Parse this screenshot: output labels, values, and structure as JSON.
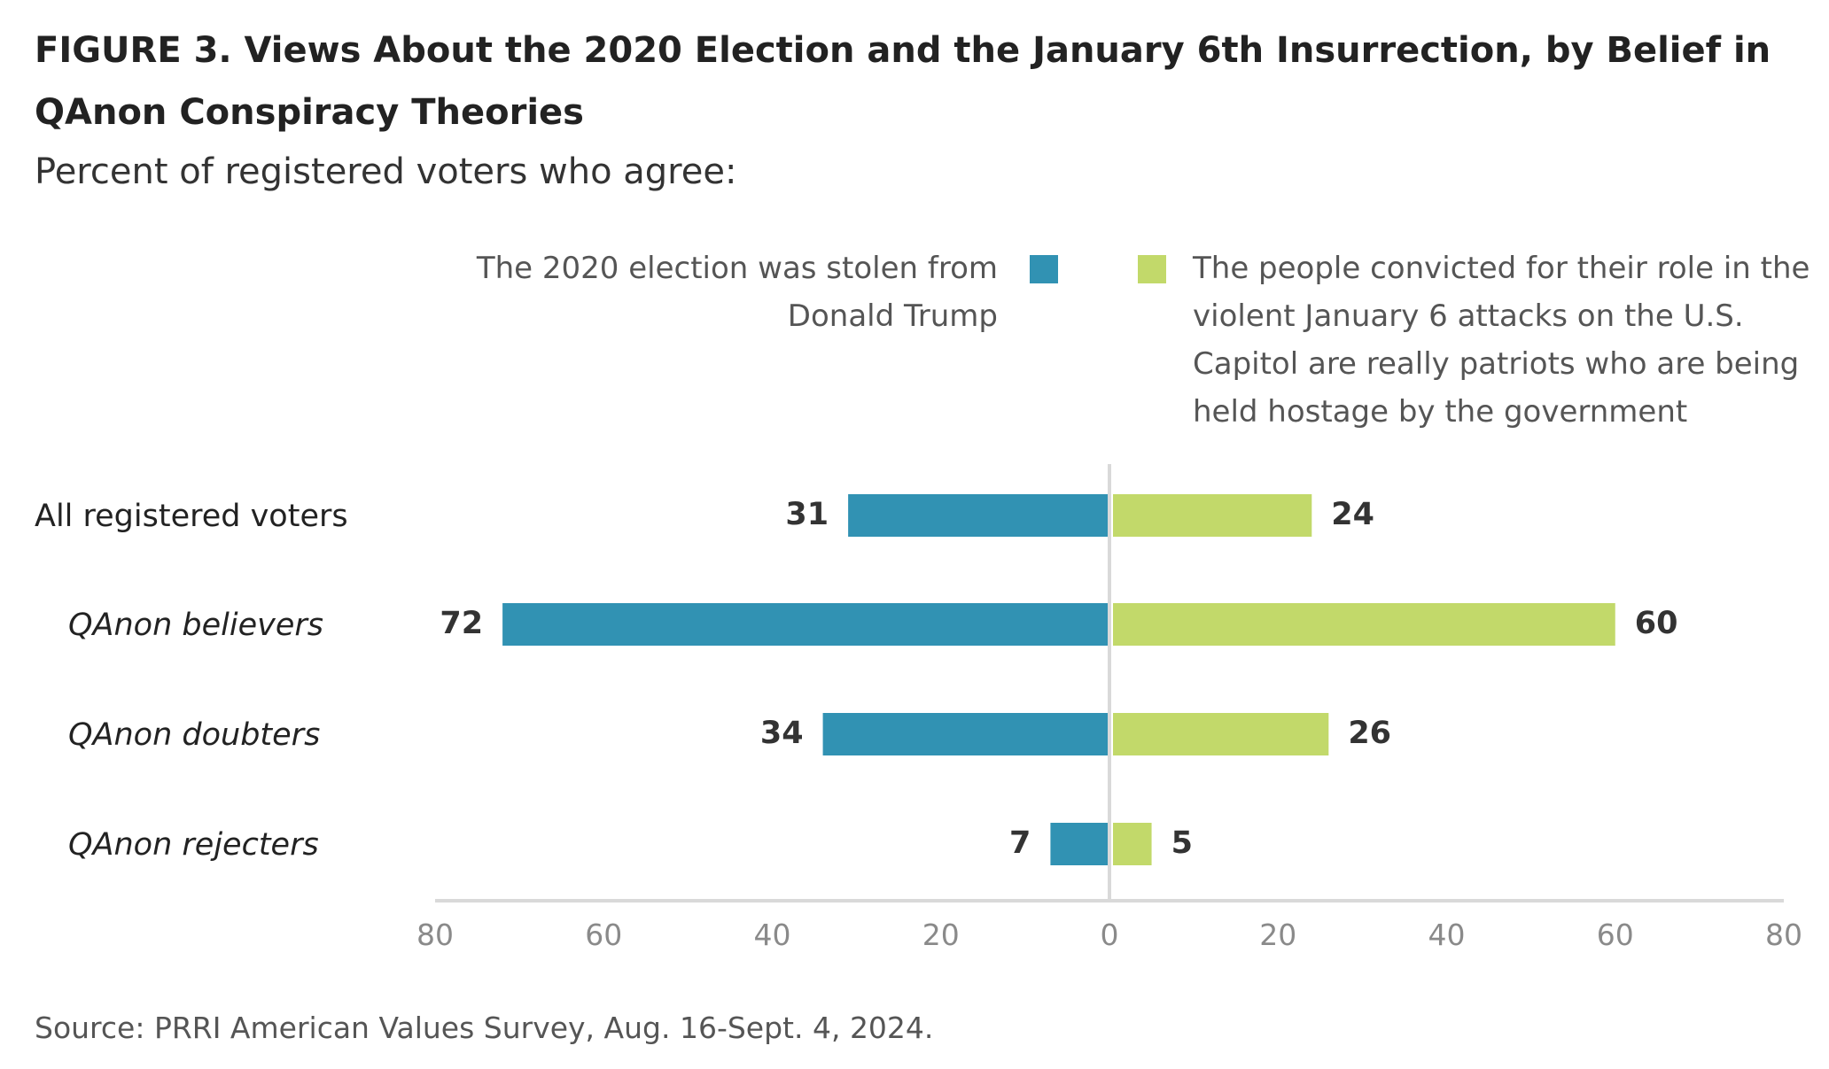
{
  "title": "FIGURE 3. Views About the 2020 Election and the January 6th Insurrection, by Belief in QAnon Conspiracy Theories",
  "subtitle": "Percent of registered voters who agree:",
  "source": "Source: PRRI American Values Survey, Aug. 16-Sept. 4, 2024.",
  "colors": {
    "left": "#3192b3",
    "right": "#c2d96a",
    "axis": "#d9d9d9",
    "tick": "#8a8a8a"
  },
  "chart_data": {
    "type": "bar",
    "orientation": "horizontal-diverging",
    "title": "FIGURE 3. Views About the 2020 Election and the January 6th Insurrection, by Belief in QAnon Conspiracy Theories",
    "subtitle": "Percent of registered voters who agree:",
    "categories": [
      "All registered voters",
      "QAnon believers",
      "QAnon doubters",
      "QAnon rejecters"
    ],
    "category_italic": [
      false,
      true,
      true,
      true
    ],
    "series": [
      {
        "name": "The 2020 election was stolen from Donald Trump",
        "side": "left",
        "values": [
          31,
          72,
          34,
          7
        ]
      },
      {
        "name": "The people convicted for their role in the violent January 6 attacks on the U.S. Capitol are really patriots who are being held hostage by the government",
        "side": "right",
        "values": [
          24,
          60,
          26,
          5
        ]
      }
    ],
    "xlim": [
      -80,
      80
    ],
    "xticks": [
      -80,
      -60,
      -40,
      -20,
      0,
      20,
      40,
      60,
      80
    ],
    "xtick_labels": [
      "80",
      "60",
      "40",
      "20",
      "0",
      "20",
      "40",
      "60",
      "80"
    ],
    "legend_position": "top",
    "grid": false
  }
}
